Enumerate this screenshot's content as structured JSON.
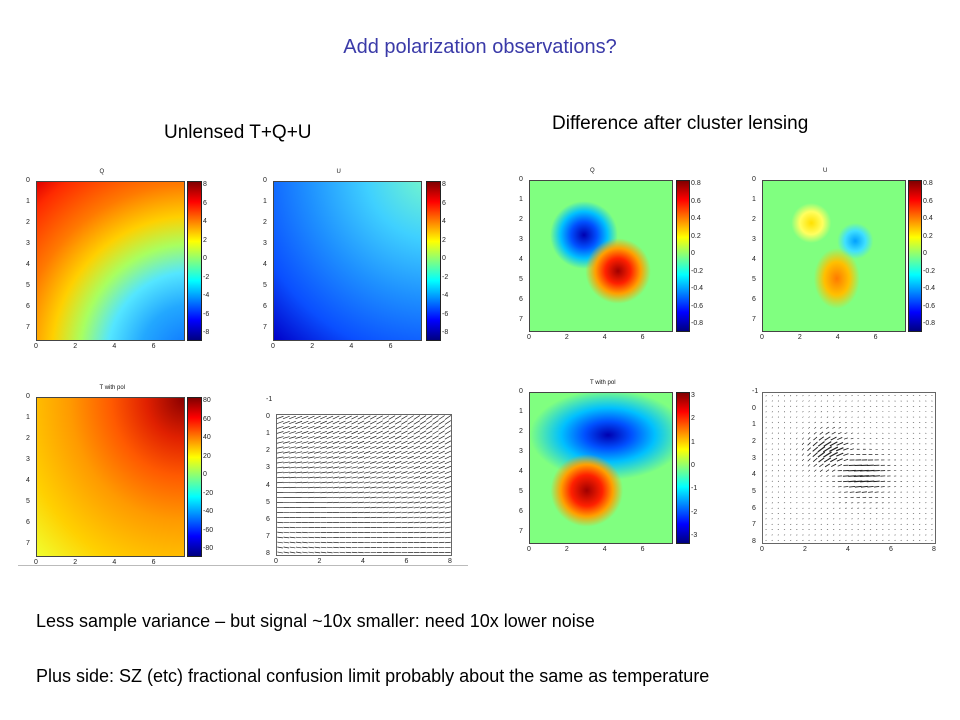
{
  "slide": {
    "title": "Add polarization observations?",
    "left_heading": "Unlensed T+Q+U",
    "right_heading": "Difference after cluster lensing",
    "line1": "Less sample variance – but signal ~10x smaller: need 10x lower noise",
    "line2": "Plus side: SZ (etc) fractional confusion limit probably about the same as temperature"
  },
  "panels": {
    "q_unlensed": {
      "title": "Q",
      "cbar": [
        "8",
        "6",
        "4",
        "2",
        "0",
        "-2",
        "-4",
        "-6",
        "-8"
      ]
    },
    "u_unlensed": {
      "title": "U",
      "cbar": [
        "8",
        "6",
        "4",
        "2",
        "0",
        "-2",
        "-4",
        "-6",
        "-8"
      ]
    },
    "t_unlensed": {
      "title": "T with pol",
      "cbar": [
        "80",
        "60",
        "40",
        "20",
        "0",
        "-20",
        "-40",
        "-60",
        "-80"
      ]
    },
    "q_diff": {
      "title": "Q",
      "cbar": [
        "0.8",
        "0.6",
        "0.4",
        "0.2",
        "0",
        "-0.2",
        "-0.4",
        "-0.6",
        "-0.8"
      ]
    },
    "u_diff": {
      "title": "U",
      "cbar": [
        "0.8",
        "0.6",
        "0.4",
        "0.2",
        "0",
        "-0.2",
        "-0.4",
        "-0.6",
        "-0.8"
      ]
    },
    "t_diff": {
      "title": "T with pol",
      "cbar": [
        "3",
        "2",
        "1",
        "0",
        "-1",
        "-2",
        "-3"
      ]
    }
  },
  "axes": {
    "map_y": [
      "0",
      "1",
      "2",
      "3",
      "4",
      "5",
      "6",
      "7"
    ],
    "map_x": [
      "0",
      "2",
      "4",
      "6"
    ],
    "vec_y": [
      "-1",
      "0",
      "1",
      "2",
      "3",
      "4",
      "5",
      "6",
      "7",
      "8"
    ],
    "vec_x": [
      "0",
      "2",
      "4",
      "6",
      "8"
    ]
  },
  "colors": {
    "title": "#3a3aa8",
    "jet_background": "#80ff80"
  }
}
